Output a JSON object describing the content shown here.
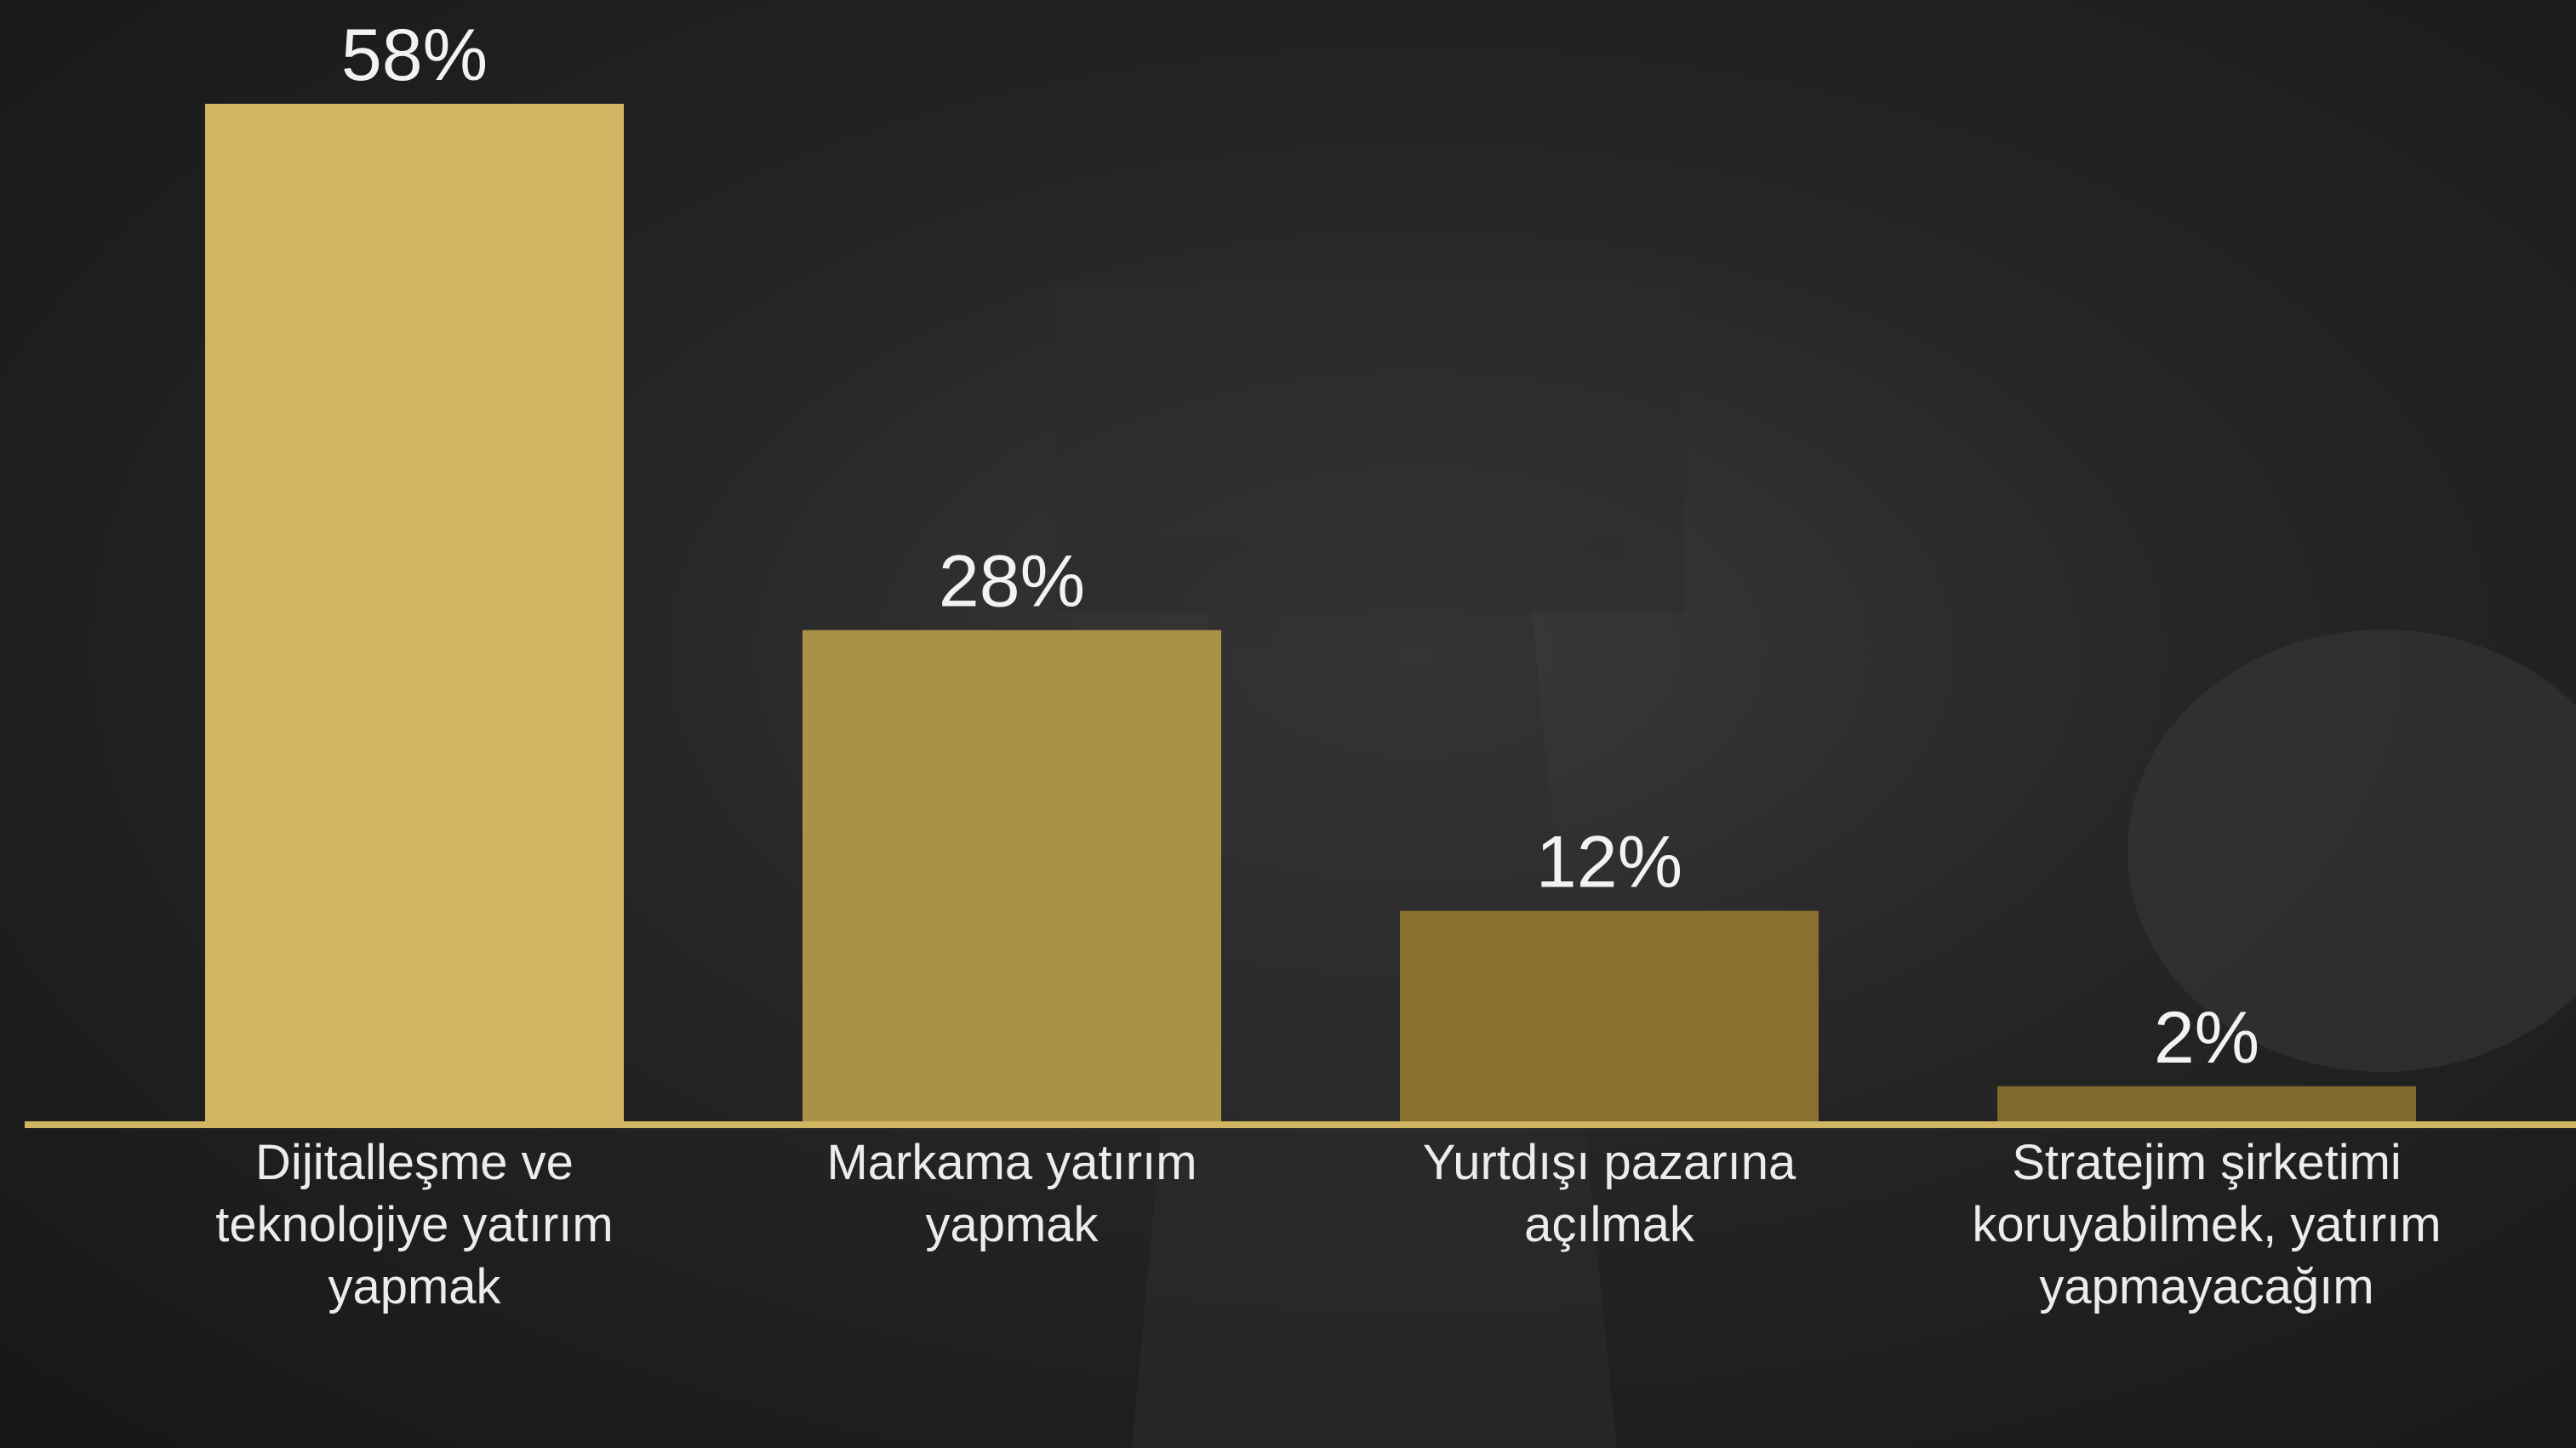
{
  "chart_data": {
    "type": "bar",
    "categories": [
      "Dijitalleşme ve teknolojiye yatırım yapmak",
      "Markama yatırım yapmak",
      "Yurtdışı pazarına açılmak",
      "Stratejim şirketimi koruyabilmek, yatırım yapmayacağım"
    ],
    "values": [
      58,
      28,
      12,
      2
    ],
    "value_labels": [
      "58%",
      "28%",
      "12%",
      "2%"
    ],
    "colors": [
      "#d0b562",
      "#ab9145",
      "#8a702e",
      "#7f6a2b"
    ],
    "baseline_color": "#d0b562"
  }
}
